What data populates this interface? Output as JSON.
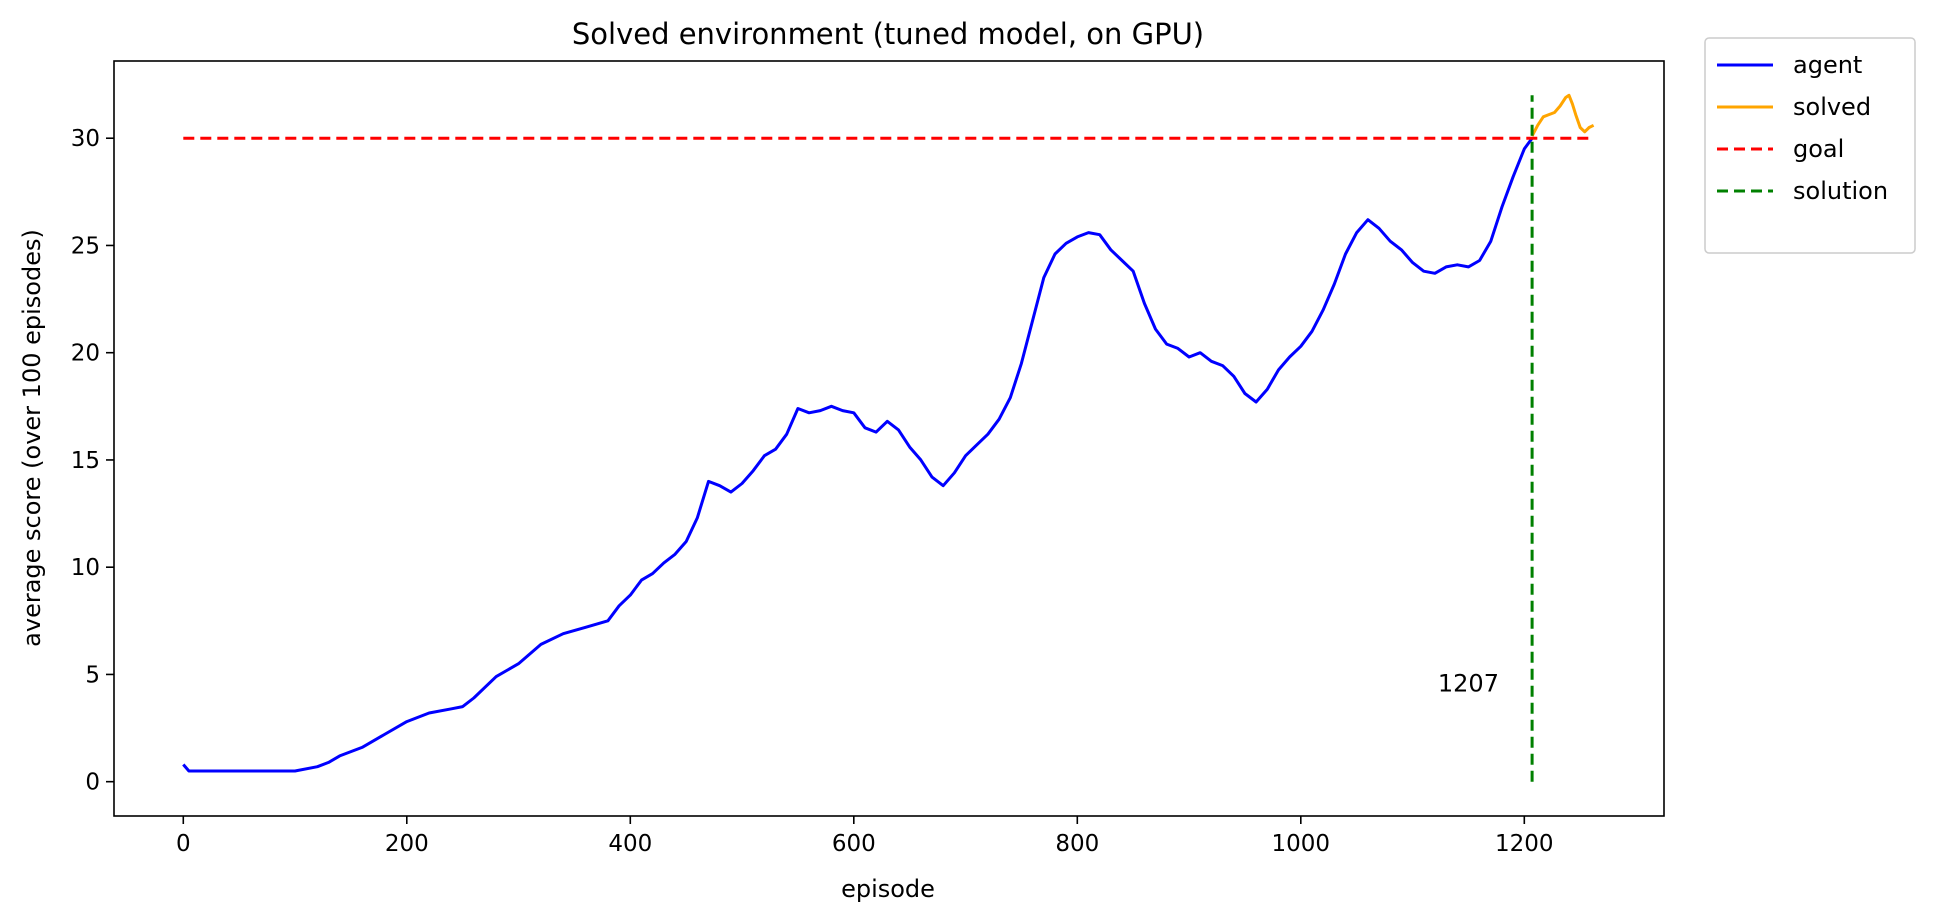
{
  "chart_data": {
    "type": "line",
    "title": "Solved environment (tuned model, on GPU)",
    "xlabel": "episode",
    "ylabel": "average score (over 100 episodes)",
    "xlim": [
      -62,
      1325
    ],
    "ylim": [
      -1.6,
      33.6
    ],
    "xticks": [
      0,
      200,
      400,
      600,
      800,
      1000,
      1200
    ],
    "yticks": [
      0,
      5,
      10,
      15,
      20,
      25,
      30
    ],
    "grid": false,
    "legend_position": "outside-top-right",
    "colors": {
      "agent": "#0000ff",
      "solved": "#ffa500",
      "goal": "#ff0000",
      "solution": "#008000"
    },
    "series": [
      {
        "name": "agent",
        "color": "#0000ff",
        "x": [
          0,
          5,
          10,
          20,
          40,
          60,
          80,
          100,
          120,
          130,
          140,
          160,
          180,
          200,
          220,
          240,
          250,
          260,
          280,
          300,
          320,
          340,
          360,
          380,
          390,
          400,
          410,
          420,
          430,
          440,
          450,
          460,
          470,
          480,
          490,
          500,
          510,
          520,
          530,
          540,
          550,
          560,
          570,
          580,
          590,
          600,
          610,
          620,
          630,
          640,
          650,
          660,
          670,
          680,
          690,
          700,
          710,
          720,
          730,
          740,
          750,
          760,
          770,
          780,
          790,
          800,
          810,
          820,
          830,
          840,
          850,
          860,
          870,
          880,
          890,
          900,
          910,
          920,
          930,
          940,
          950,
          960,
          970,
          980,
          990,
          1000,
          1010,
          1020,
          1030,
          1040,
          1050,
          1060,
          1070,
          1080,
          1090,
          1100,
          1110,
          1120,
          1130,
          1140,
          1150,
          1160,
          1170,
          1180,
          1190,
          1200,
          1207
        ],
        "y": [
          0.8,
          0.5,
          0.5,
          0.5,
          0.5,
          0.5,
          0.5,
          0.5,
          0.7,
          0.9,
          1.2,
          1.6,
          2.2,
          2.8,
          3.2,
          3.4,
          3.5,
          3.9,
          4.9,
          5.5,
          6.4,
          6.9,
          7.2,
          7.5,
          8.2,
          8.7,
          9.4,
          9.7,
          10.2,
          10.6,
          11.2,
          12.3,
          14.0,
          13.8,
          13.5,
          13.9,
          14.5,
          15.2,
          15.5,
          16.2,
          17.4,
          17.2,
          17.3,
          17.5,
          17.3,
          17.2,
          16.5,
          16.3,
          16.8,
          16.4,
          15.6,
          15.0,
          14.2,
          13.8,
          14.4,
          15.2,
          15.7,
          16.2,
          16.9,
          17.9,
          19.5,
          21.5,
          23.5,
          24.6,
          25.1,
          25.4,
          25.6,
          25.5,
          24.8,
          24.3,
          23.8,
          22.3,
          21.1,
          20.4,
          20.2,
          19.8,
          20.0,
          19.6,
          19.4,
          18.9,
          18.1,
          17.7,
          18.3,
          19.2,
          19.8,
          20.3,
          21.0,
          22.0,
          23.2,
          24.6,
          25.6,
          26.2,
          25.8,
          25.2,
          24.8,
          24.2,
          23.8,
          23.7,
          24.0,
          24.1,
          24.0,
          24.3,
          25.2,
          26.8,
          28.2,
          29.5,
          30.0
        ]
      },
      {
        "name": "solved",
        "color": "#ffa500",
        "x": [
          1207,
          1212,
          1217,
          1222,
          1227,
          1232,
          1237,
          1240,
          1243,
          1246,
          1250,
          1254,
          1258,
          1262
        ],
        "y": [
          30.1,
          30.6,
          31.0,
          31.1,
          31.2,
          31.5,
          31.9,
          32.0,
          31.6,
          31.1,
          30.5,
          30.3,
          30.5,
          30.6
        ]
      },
      {
        "name": "goal",
        "color": "#ff0000",
        "style": "dashed",
        "x": [
          0,
          1262
        ],
        "y": [
          30,
          30
        ]
      },
      {
        "name": "solution",
        "color": "#008000",
        "style": "dashed",
        "x": [
          1207,
          1207
        ],
        "y": [
          0,
          32
        ]
      }
    ],
    "annotations": [
      {
        "text": "1207",
        "x": 1150,
        "y": 4.2
      }
    ]
  }
}
